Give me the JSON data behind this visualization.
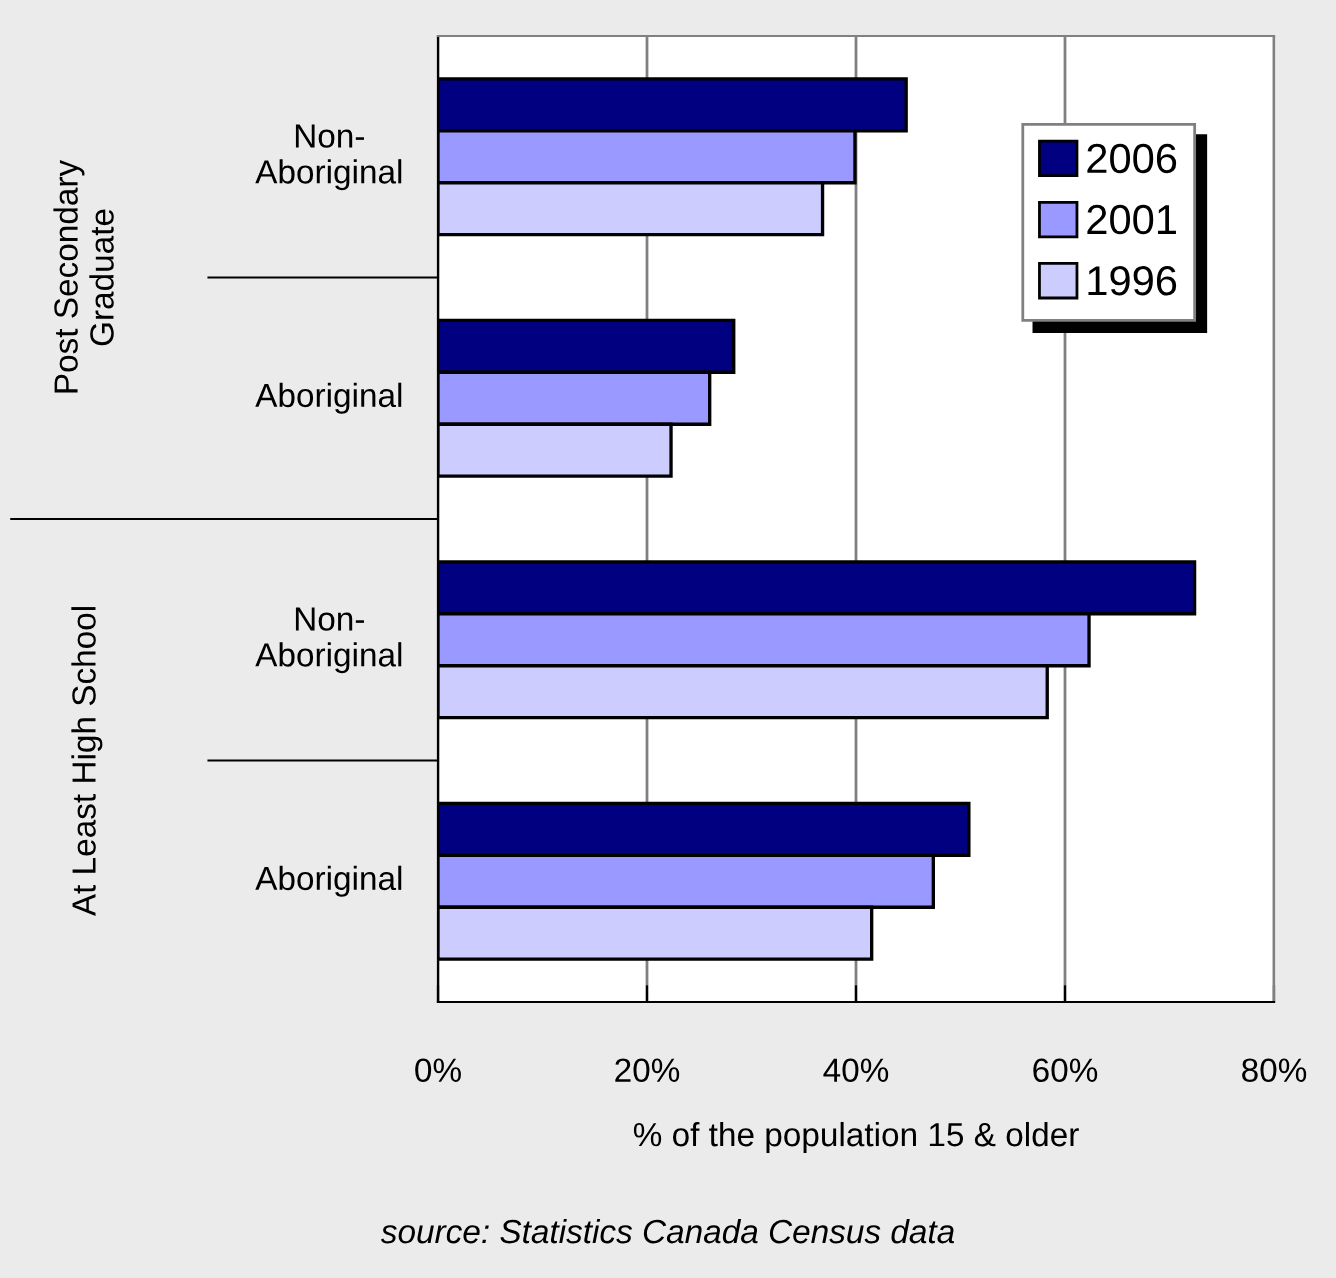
{
  "chart_data": {
    "type": "bar",
    "orientation": "horizontal",
    "xlabel": "% of the population 15 & older",
    "categories": [
      "Non-\nAboriginal",
      "Aboriginal",
      "Non-\nAboriginal",
      "Aboriginal"
    ],
    "series": [
      {
        "name": "2006",
        "color": "#000080",
        "values": [
          44.8,
          28.3,
          72.4,
          50.8
        ]
      },
      {
        "name": "2001",
        "color": "#9999ff",
        "values": [
          39.9,
          26.0,
          62.3,
          47.4
        ]
      },
      {
        "name": "1996",
        "color": "#ccccff",
        "values": [
          36.8,
          22.3,
          58.3,
          41.5
        ]
      }
    ],
    "xlim": [
      0,
      80
    ],
    "xticks": [
      {
        "value": 0,
        "label": "0%"
      },
      {
        "value": 20,
        "label": "20%"
      },
      {
        "value": 40,
        "label": "40%"
      },
      {
        "value": 60,
        "label": "60%"
      },
      {
        "value": 80,
        "label": "80%"
      }
    ],
    "grid": "x",
    "legend": "top right",
    "annotations": [
      "Post Secondary\nGraduate",
      "At Least High School",
      "source: Statistics Canada Census data"
    ]
  }
}
